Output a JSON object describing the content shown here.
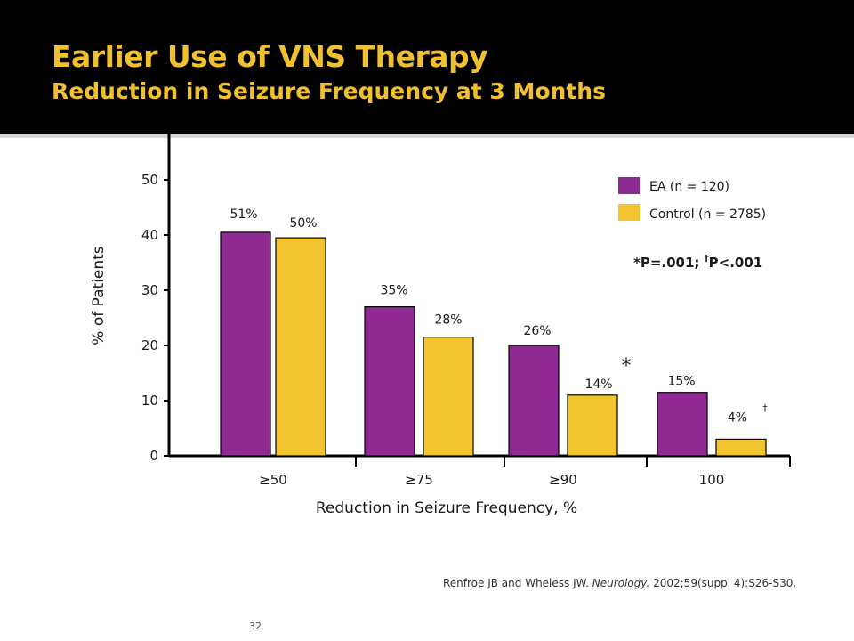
{
  "header": {
    "title": "Earlier Use of VNS Therapy",
    "subtitle": "Reduction in Seizure Frequency at 3 Months"
  },
  "chart_data": {
    "type": "bar",
    "categories": [
      "≥50",
      "≥75",
      "≥90",
      "100"
    ],
    "series": [
      {
        "name": "EA (n = 120)",
        "values": [
          51,
          35,
          26,
          15
        ],
        "labels": [
          "51%",
          "35%",
          "26%",
          "15%"
        ],
        "color": "#8e2a92"
      },
      {
        "name": "Control (n = 2785)",
        "values": [
          50,
          28,
          14,
          4
        ],
        "labels": [
          "50%",
          "28%",
          "14%",
          "4%"
        ],
        "color": "#f2c42f"
      }
    ],
    "bar_heights_as_drawn": {
      "EA (n = 120)": [
        40.5,
        27,
        20,
        11.5
      ],
      "Control (n = 2785)": [
        39.5,
        21.5,
        11,
        3
      ]
    },
    "markers": [
      {
        "series": 1,
        "category": 2,
        "symbol": "*"
      },
      {
        "series": 1,
        "category": 3,
        "symbol": "†"
      }
    ],
    "ylabel": "% of Patients",
    "xlabel": "Reduction in Seizure Frequency, %",
    "yticks": [
      0,
      10,
      20,
      30,
      40,
      50
    ],
    "ylim": [
      0,
      58
    ],
    "legend_position": "top-right",
    "annotation": {
      "prefix": "*P=.001; ",
      "dagger": "†",
      "suffix": "P<.001"
    }
  },
  "footnote": {
    "authors": "Renfroe JB and Wheless JW. ",
    "journal": "Neurology.",
    "rest": " 2002;59(suppl 4):S26-S30."
  },
  "page_number": "32"
}
